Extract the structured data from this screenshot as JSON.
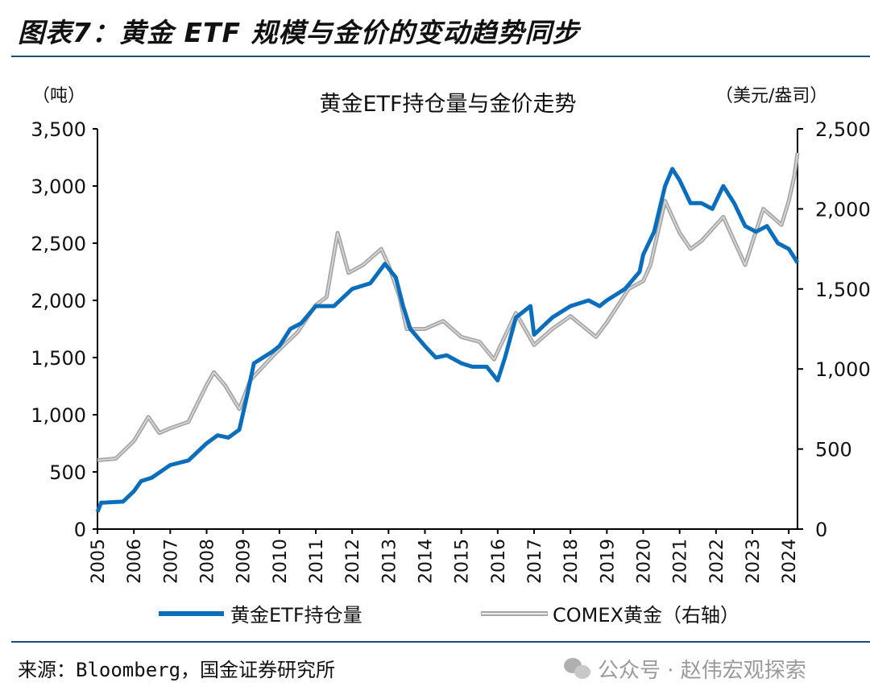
{
  "figure_title": "图表7：黄金 ETF 规模与金价的变动趋势同步",
  "source": "来源：Bloomberg，国金证券研究所",
  "watermark": "公众号 · 赵伟宏观探索",
  "chart_data": {
    "type": "line",
    "title": "黄金ETF持仓量与金价走势",
    "y_left_unit": "（吨）",
    "y_right_unit": "（美元/盎司）",
    "x_ticks": [
      "2005",
      "2006",
      "2007",
      "2008",
      "2009",
      "2010",
      "2011",
      "2012",
      "2013",
      "2014",
      "2015",
      "2016",
      "2017",
      "2018",
      "2019",
      "2020",
      "2021",
      "2022",
      "2023",
      "2024"
    ],
    "xlim": [
      2005,
      2024.24
    ],
    "y_left": {
      "range": [
        0,
        3500
      ],
      "ticks": [
        "0",
        "500",
        "1,000",
        "1,500",
        "2,000",
        "2,500",
        "3,000",
        "3,500"
      ]
    },
    "y_right": {
      "range": [
        0,
        2500
      ],
      "ticks": [
        "0",
        "500",
        "1,000",
        "1,500",
        "2,000",
        "2,500"
      ]
    },
    "grid": false,
    "legend_position": "bottom",
    "series": [
      {
        "name": "黄金ETF持仓量",
        "axis": "left",
        "color": "#0a6ebd",
        "x": [
          2005.0,
          2005.1,
          2005.7,
          2006.0,
          2006.2,
          2006.5,
          2007.0,
          2007.5,
          2008.0,
          2008.3,
          2008.6,
          2008.9,
          2009.1,
          2009.3,
          2009.8,
          2010.0,
          2010.3,
          2010.6,
          2011.0,
          2011.5,
          2012.0,
          2012.5,
          2012.9,
          2013.2,
          2013.4,
          2013.6,
          2014.0,
          2014.3,
          2014.6,
          2015.0,
          2015.3,
          2015.7,
          2016.0,
          2016.2,
          2016.5,
          2016.9,
          2017.0,
          2017.5,
          2018.0,
          2018.5,
          2018.8,
          2019.0,
          2019.5,
          2019.9,
          2020.0,
          2020.3,
          2020.6,
          2020.8,
          2021.0,
          2021.3,
          2021.6,
          2021.9,
          2022.2,
          2022.5,
          2022.8,
          2023.1,
          2023.4,
          2023.7,
          2024.0,
          2024.24
        ],
        "y": [
          150,
          230,
          240,
          330,
          420,
          450,
          560,
          600,
          750,
          820,
          800,
          870,
          1150,
          1450,
          1550,
          1600,
          1750,
          1800,
          1950,
          1950,
          2100,
          2150,
          2320,
          2200,
          1950,
          1750,
          1600,
          1500,
          1520,
          1450,
          1420,
          1420,
          1300,
          1500,
          1850,
          1950,
          1700,
          1850,
          1950,
          2000,
          1950,
          2000,
          2100,
          2250,
          2400,
          2600,
          3000,
          3150,
          3050,
          2850,
          2850,
          2800,
          3000,
          2850,
          2650,
          2600,
          2650,
          2500,
          2450,
          2330
        ]
      },
      {
        "name": "COMEX黄金（右轴）",
        "axis": "right",
        "color": "#a6a6a6",
        "x": [
          2005.0,
          2005.5,
          2006.0,
          2006.4,
          2006.7,
          2007.0,
          2007.5,
          2008.0,
          2008.2,
          2008.5,
          2008.9,
          2009.2,
          2009.9,
          2010.5,
          2011.0,
          2011.3,
          2011.6,
          2011.9,
          2012.3,
          2012.8,
          2013.0,
          2013.3,
          2013.5,
          2014.0,
          2014.5,
          2015.0,
          2015.5,
          2015.9,
          2016.5,
          2017.0,
          2017.5,
          2018.0,
          2018.7,
          2019.0,
          2019.6,
          2020.0,
          2020.2,
          2020.6,
          2021.0,
          2021.3,
          2021.6,
          2022.2,
          2022.5,
          2022.8,
          2023.3,
          2023.8,
          2024.0,
          2024.15,
          2024.24
        ],
        "y": [
          430,
          440,
          550,
          700,
          600,
          630,
          670,
          900,
          980,
          900,
          750,
          930,
          1100,
          1230,
          1400,
          1450,
          1850,
          1600,
          1650,
          1750,
          1650,
          1450,
          1250,
          1250,
          1300,
          1200,
          1170,
          1060,
          1350,
          1150,
          1250,
          1330,
          1200,
          1290,
          1500,
          1550,
          1650,
          2050,
          1850,
          1750,
          1800,
          1950,
          1800,
          1650,
          2000,
          1900,
          2050,
          2200,
          2350
        ]
      }
    ]
  }
}
